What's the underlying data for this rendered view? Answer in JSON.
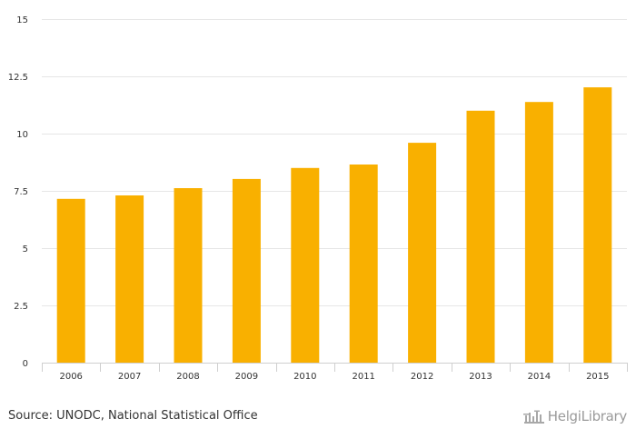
{
  "chart_data": {
    "type": "bar",
    "categories": [
      "2006",
      "2007",
      "2008",
      "2009",
      "2010",
      "2011",
      "2012",
      "2013",
      "2014",
      "2015"
    ],
    "values": [
      7.15,
      7.3,
      7.62,
      8.02,
      8.5,
      8.65,
      9.6,
      11.0,
      11.38,
      12.02
    ],
    "title": "",
    "xlabel": "",
    "ylabel": "",
    "ylim": [
      0,
      15
    ],
    "yticks": [
      "0",
      "2.5",
      "5",
      "7.5",
      "10",
      "12.5",
      "15"
    ],
    "grid": true,
    "legend": "none",
    "bar_color": "#f9b000"
  },
  "footer": {
    "source": "Source: UNODC, National Statistical Office",
    "brand": "HelgiLibrary",
    "brand_icon": "library-building-icon"
  }
}
